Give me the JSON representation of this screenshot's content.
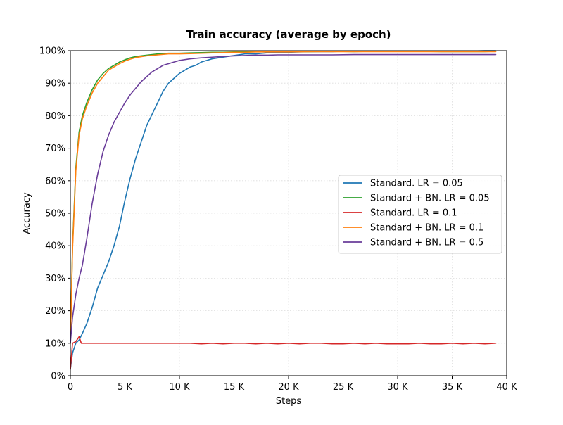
{
  "chart_data": {
    "type": "line",
    "title": "Train accuracy (average by epoch)",
    "xlabel": "Steps",
    "ylabel": "Accuracy",
    "xlim": [
      0,
      40000
    ],
    "ylim": [
      0,
      1.0
    ],
    "x_ticks": [
      0,
      5000,
      10000,
      15000,
      20000,
      25000,
      30000,
      35000,
      40000
    ],
    "x_tick_labels": [
      "0",
      "5 K",
      "10 K",
      "15 K",
      "20 K",
      "25 K",
      "30 K",
      "35 K",
      "40 K"
    ],
    "y_ticks": [
      0,
      0.1,
      0.2,
      0.3,
      0.4,
      0.5,
      0.6,
      0.7,
      0.8,
      0.9,
      1.0
    ],
    "y_tick_labels": [
      "0%",
      "10%",
      "20%",
      "30%",
      "40%",
      "50%",
      "60%",
      "70%",
      "80%",
      "90%",
      "100%"
    ],
    "grid": true,
    "legend_position": "center-right",
    "series": [
      {
        "name": "Standard. LR = 0.05",
        "color": "#1f77b4",
        "x": [
          0,
          200,
          500,
          800,
          1100,
          1500,
          2000,
          2500,
          3000,
          3500,
          4000,
          4500,
          5000,
          5500,
          6000,
          6500,
          7000,
          7500,
          8000,
          8500,
          9000,
          9500,
          10000,
          10500,
          11000,
          11500,
          12000,
          12500,
          13000,
          14000,
          15000,
          16000,
          17000,
          18000,
          19000,
          20000,
          21000,
          22000,
          23000,
          24000,
          25000,
          26000,
          27000,
          28000,
          29000,
          30000,
          31000,
          32000,
          33000,
          34000,
          35000,
          36000,
          37000,
          38000,
          39000
        ],
        "y": [
          0.02,
          0.07,
          0.1,
          0.11,
          0.13,
          0.16,
          0.21,
          0.27,
          0.31,
          0.35,
          0.4,
          0.46,
          0.54,
          0.61,
          0.67,
          0.72,
          0.77,
          0.805,
          0.84,
          0.875,
          0.9,
          0.915,
          0.93,
          0.94,
          0.95,
          0.955,
          0.965,
          0.97,
          0.975,
          0.98,
          0.985,
          0.99,
          0.99,
          0.993,
          0.995,
          0.995,
          0.996,
          0.997,
          0.997,
          0.997,
          0.998,
          0.998,
          0.998,
          0.999,
          0.999,
          0.998,
          0.999,
          0.999,
          0.999,
          0.998,
          0.999,
          0.999,
          0.999,
          1.0,
          1.0
        ]
      },
      {
        "name": "Standard + BN. LR = 0.05",
        "color": "#2ca02c",
        "x": [
          0,
          200,
          500,
          800,
          1100,
          1500,
          2000,
          2500,
          3000,
          3500,
          4000,
          4500,
          5000,
          5500,
          6000,
          7000,
          8000,
          9000,
          10000,
          11000,
          12000,
          13000,
          14000,
          15000,
          16000,
          17000,
          18000,
          19000,
          20000,
          22000,
          24000,
          26000,
          28000,
          30000,
          32000,
          34000,
          36000,
          38000,
          39000
        ],
        "y": [
          0.1,
          0.4,
          0.64,
          0.75,
          0.8,
          0.84,
          0.88,
          0.91,
          0.93,
          0.945,
          0.955,
          0.965,
          0.972,
          0.978,
          0.982,
          0.986,
          0.99,
          0.992,
          0.992,
          0.993,
          0.994,
          0.995,
          0.995,
          0.996,
          0.997,
          0.997,
          0.997,
          0.998,
          0.997,
          0.997,
          0.998,
          0.997,
          0.998,
          0.998,
          0.998,
          0.997,
          0.997,
          0.997,
          0.998
        ]
      },
      {
        "name": "Standard. LR = 0.1",
        "color": "#d62728",
        "x": [
          0,
          200,
          500,
          800,
          1000,
          1300,
          1600,
          2000,
          3000,
          4000,
          5000,
          6000,
          7000,
          8000,
          9000,
          10000,
          11000,
          12000,
          13000,
          14000,
          15000,
          16000,
          17000,
          18000,
          19000,
          20000,
          21000,
          22000,
          23000,
          24000,
          25000,
          26000,
          27000,
          28000,
          29000,
          30000,
          31000,
          32000,
          33000,
          34000,
          35000,
          36000,
          37000,
          38000,
          39000
        ],
        "y": [
          0.02,
          0.1,
          0.105,
          0.12,
          0.1,
          0.1,
          0.1,
          0.1,
          0.1,
          0.1,
          0.1,
          0.1,
          0.1,
          0.1,
          0.1,
          0.1,
          0.1,
          0.098,
          0.1,
          0.098,
          0.1,
          0.1,
          0.098,
          0.1,
          0.098,
          0.1,
          0.098,
          0.1,
          0.1,
          0.098,
          0.098,
          0.1,
          0.098,
          0.1,
          0.098,
          0.098,
          0.098,
          0.1,
          0.098,
          0.098,
          0.1,
          0.098,
          0.1,
          0.098,
          0.1
        ]
      },
      {
        "name": "Standard + BN. LR = 0.1",
        "color": "#ff7f0e",
        "x": [
          0,
          200,
          500,
          800,
          1100,
          1500,
          2000,
          2500,
          3000,
          3500,
          4000,
          4500,
          5000,
          5500,
          6000,
          7000,
          8000,
          9000,
          10000,
          11000,
          12000,
          13000,
          14000,
          15000,
          16000,
          17000,
          18000,
          19000,
          20000,
          22000,
          24000,
          26000,
          28000,
          30000,
          32000,
          34000,
          36000,
          38000,
          39000
        ],
        "y": [
          0.1,
          0.39,
          0.63,
          0.74,
          0.79,
          0.83,
          0.87,
          0.9,
          0.92,
          0.94,
          0.95,
          0.96,
          0.968,
          0.974,
          0.979,
          0.984,
          0.987,
          0.99,
          0.99,
          0.991,
          0.992,
          0.993,
          0.994,
          0.995,
          0.995,
          0.996,
          0.996,
          0.996,
          0.996,
          0.997,
          0.997,
          0.997,
          0.997,
          0.997,
          0.997,
          0.997,
          0.997,
          0.997,
          0.997
        ]
      },
      {
        "name": "Standard + BN. LR = 0.5",
        "color": "#6a3d9a",
        "x": [
          0,
          200,
          500,
          800,
          1100,
          1500,
          2000,
          2500,
          3000,
          3500,
          4000,
          4500,
          5000,
          5500,
          6000,
          6500,
          7000,
          7500,
          8000,
          8500,
          9000,
          9500,
          10000,
          11000,
          12000,
          13000,
          14000,
          15000,
          16000,
          17000,
          18000,
          19000,
          20000,
          22000,
          24000,
          26000,
          28000,
          30000,
          32000,
          34000,
          36000,
          38000,
          39000
        ],
        "y": [
          0.1,
          0.18,
          0.25,
          0.3,
          0.34,
          0.42,
          0.53,
          0.62,
          0.69,
          0.74,
          0.78,
          0.81,
          0.84,
          0.865,
          0.885,
          0.905,
          0.92,
          0.935,
          0.945,
          0.955,
          0.96,
          0.965,
          0.97,
          0.975,
          0.978,
          0.98,
          0.982,
          0.984,
          0.985,
          0.986,
          0.986,
          0.987,
          0.987,
          0.987,
          0.987,
          0.988,
          0.988,
          0.988,
          0.988,
          0.988,
          0.988,
          0.988,
          0.988
        ]
      }
    ]
  }
}
